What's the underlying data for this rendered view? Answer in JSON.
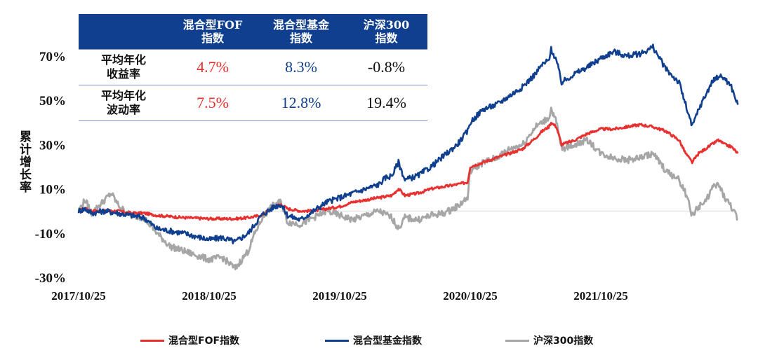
{
  "chart_data": {
    "type": "line",
    "ylabel": "累计增长率",
    "y_ticks": [
      "70%",
      "50%",
      "30%",
      "10%",
      "-10%",
      "-30%"
    ],
    "y_tick_values": [
      70,
      50,
      30,
      10,
      -10,
      -30
    ],
    "ylim": [
      -30,
      70
    ],
    "x_ticks": [
      "2017/10/25",
      "2018/10/25",
      "2019/10/25",
      "2020/10/25",
      "2021/10/25"
    ],
    "xlim": [
      "2017/10/25",
      "2022/10/25"
    ],
    "series": [
      {
        "name": "混合型FOF指数",
        "color": "#e8312f",
        "points": [
          [
            0,
            0
          ],
          [
            0.05,
            1
          ],
          [
            0.1,
            0
          ],
          [
            0.2,
            0
          ],
          [
            0.3,
            0
          ],
          [
            0.4,
            -1
          ],
          [
            0.5,
            -1
          ],
          [
            0.6,
            -2
          ],
          [
            0.8,
            -3
          ],
          [
            1.0,
            -3.5
          ],
          [
            1.2,
            -3.5
          ],
          [
            1.3,
            -3
          ],
          [
            1.4,
            -2
          ],
          [
            1.45,
            0
          ],
          [
            1.5,
            2
          ],
          [
            1.55,
            3
          ],
          [
            1.6,
            1
          ],
          [
            1.7,
            0
          ],
          [
            1.8,
            0
          ],
          [
            1.9,
            1
          ],
          [
            2.0,
            2
          ],
          [
            2.1,
            4
          ],
          [
            2.2,
            5
          ],
          [
            2.3,
            6
          ],
          [
            2.4,
            7
          ],
          [
            2.45,
            10
          ],
          [
            2.5,
            7
          ],
          [
            2.6,
            8
          ],
          [
            2.7,
            10
          ],
          [
            2.8,
            11
          ],
          [
            2.9,
            12
          ],
          [
            2.98,
            13
          ],
          [
            3.0,
            20
          ],
          [
            3.1,
            22
          ],
          [
            3.2,
            24
          ],
          [
            3.3,
            26
          ],
          [
            3.4,
            28
          ],
          [
            3.5,
            33
          ],
          [
            3.55,
            36
          ],
          [
            3.6,
            38
          ],
          [
            3.62,
            40
          ],
          [
            3.66,
            38
          ],
          [
            3.7,
            30
          ],
          [
            3.8,
            32
          ],
          [
            3.9,
            35
          ],
          [
            4.0,
            37
          ],
          [
            4.1,
            37
          ],
          [
            4.2,
            38
          ],
          [
            4.3,
            39
          ],
          [
            4.4,
            38
          ],
          [
            4.5,
            36
          ],
          [
            4.6,
            32
          ],
          [
            4.65,
            26
          ],
          [
            4.7,
            22
          ],
          [
            4.75,
            26
          ],
          [
            4.8,
            28
          ],
          [
            4.85,
            30
          ],
          [
            4.9,
            32
          ],
          [
            4.95,
            30
          ],
          [
            5.0,
            29
          ],
          [
            5.05,
            26
          ]
        ]
      },
      {
        "name": "混合型基金指数",
        "color": "#0f3f8e",
        "points": [
          [
            0,
            0
          ],
          [
            0.05,
            1
          ],
          [
            0.1,
            -1
          ],
          [
            0.2,
            0
          ],
          [
            0.3,
            -1
          ],
          [
            0.4,
            -2
          ],
          [
            0.5,
            -3
          ],
          [
            0.6,
            -8
          ],
          [
            0.8,
            -10
          ],
          [
            1.0,
            -13
          ],
          [
            1.1,
            -12
          ],
          [
            1.2,
            -14
          ],
          [
            1.3,
            -10
          ],
          [
            1.35,
            -6
          ],
          [
            1.4,
            -2
          ],
          [
            1.45,
            0
          ],
          [
            1.5,
            2
          ],
          [
            1.55,
            3
          ],
          [
            1.6,
            -2
          ],
          [
            1.7,
            -4
          ],
          [
            1.8,
            0
          ],
          [
            1.9,
            4
          ],
          [
            2.0,
            6
          ],
          [
            2.1,
            8
          ],
          [
            2.2,
            10
          ],
          [
            2.3,
            12
          ],
          [
            2.35,
            15
          ],
          [
            2.4,
            16
          ],
          [
            2.45,
            22
          ],
          [
            2.5,
            14
          ],
          [
            2.6,
            16
          ],
          [
            2.7,
            20
          ],
          [
            2.8,
            25
          ],
          [
            2.9,
            30
          ],
          [
            2.98,
            36
          ],
          [
            3.0,
            40
          ],
          [
            3.1,
            46
          ],
          [
            3.2,
            48
          ],
          [
            3.3,
            52
          ],
          [
            3.4,
            56
          ],
          [
            3.5,
            62
          ],
          [
            3.55,
            66
          ],
          [
            3.6,
            68
          ],
          [
            3.62,
            73
          ],
          [
            3.66,
            68
          ],
          [
            3.7,
            58
          ],
          [
            3.8,
            62
          ],
          [
            3.9,
            65
          ],
          [
            4.0,
            69
          ],
          [
            4.1,
            72
          ],
          [
            4.2,
            70
          ],
          [
            4.3,
            71
          ],
          [
            4.4,
            74
          ],
          [
            4.5,
            64
          ],
          [
            4.6,
            58
          ],
          [
            4.65,
            48
          ],
          [
            4.7,
            38
          ],
          [
            4.75,
            46
          ],
          [
            4.8,
            52
          ],
          [
            4.85,
            58
          ],
          [
            4.9,
            61
          ],
          [
            4.95,
            60
          ],
          [
            5.0,
            56
          ],
          [
            5.05,
            48
          ]
        ]
      },
      {
        "name": "沪深300指数",
        "color": "#a6a6a6",
        "points": [
          [
            0,
            0
          ],
          [
            0.05,
            5
          ],
          [
            0.1,
            -1
          ],
          [
            0.15,
            2
          ],
          [
            0.25,
            8
          ],
          [
            0.3,
            3
          ],
          [
            0.35,
            0
          ],
          [
            0.4,
            -2
          ],
          [
            0.5,
            -3
          ],
          [
            0.6,
            -10
          ],
          [
            0.7,
            -16
          ],
          [
            0.8,
            -18
          ],
          [
            1.0,
            -22
          ],
          [
            1.1,
            -21
          ],
          [
            1.2,
            -26
          ],
          [
            1.3,
            -18
          ],
          [
            1.35,
            -10
          ],
          [
            1.4,
            -4
          ],
          [
            1.45,
            0
          ],
          [
            1.5,
            3
          ],
          [
            1.55,
            4
          ],
          [
            1.6,
            -5
          ],
          [
            1.7,
            -6
          ],
          [
            1.8,
            -3
          ],
          [
            1.9,
            0
          ],
          [
            2.0,
            -2
          ],
          [
            2.1,
            -4
          ],
          [
            2.2,
            -2
          ],
          [
            2.3,
            0
          ],
          [
            2.4,
            -3
          ],
          [
            2.45,
            -8
          ],
          [
            2.5,
            -3
          ],
          [
            2.6,
            -4
          ],
          [
            2.7,
            -2
          ],
          [
            2.8,
            -1
          ],
          [
            2.9,
            2
          ],
          [
            2.98,
            6
          ],
          [
            3.0,
            18
          ],
          [
            3.1,
            22
          ],
          [
            3.2,
            24
          ],
          [
            3.3,
            28
          ],
          [
            3.4,
            30
          ],
          [
            3.5,
            38
          ],
          [
            3.55,
            40
          ],
          [
            3.6,
            42
          ],
          [
            3.62,
            46
          ],
          [
            3.66,
            40
          ],
          [
            3.7,
            28
          ],
          [
            3.8,
            30
          ],
          [
            3.9,
            32
          ],
          [
            4.0,
            26
          ],
          [
            4.1,
            24
          ],
          [
            4.2,
            23
          ],
          [
            4.3,
            24
          ],
          [
            4.4,
            26
          ],
          [
            4.5,
            18
          ],
          [
            4.6,
            14
          ],
          [
            4.65,
            8
          ],
          [
            4.7,
            -2
          ],
          [
            4.75,
            2
          ],
          [
            4.8,
            4
          ],
          [
            4.85,
            10
          ],
          [
            4.9,
            12
          ],
          [
            4.95,
            6
          ],
          [
            5.0,
            2
          ],
          [
            5.05,
            -4
          ]
        ]
      }
    ]
  },
  "table": {
    "headers": [
      "",
      "混合型FOF\n指数",
      "混合型基金\n指数",
      "沪深300\n指数"
    ],
    "rows": [
      {
        "label": "平均年化\n收益率",
        "values": [
          "4.7%",
          "8.3%",
          "-0.8%"
        ]
      },
      {
        "label": "平均年化\n波动率",
        "values": [
          "7.5%",
          "12.8%",
          "19.4%"
        ]
      }
    ]
  },
  "legend": [
    {
      "label": "混合型FOF指数",
      "color": "#e8312f"
    },
    {
      "label": "混合型基金指数",
      "color": "#0f3f8e"
    },
    {
      "label": "沪深300指数",
      "color": "#a6a6a6"
    }
  ]
}
